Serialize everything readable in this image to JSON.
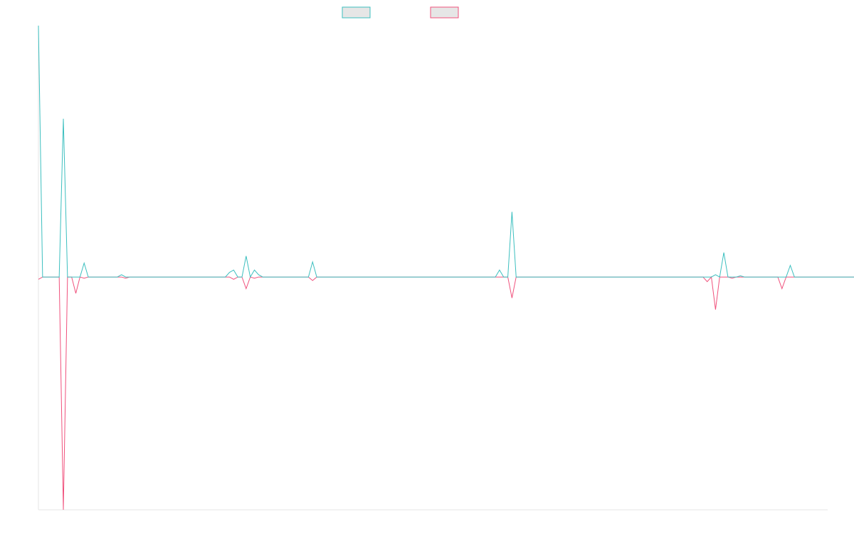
{
  "colors": {
    "background": "#ffffff",
    "axis": "#e5e5e5",
    "legend_fill": "#e6e6e6"
  },
  "chart_data": {
    "type": "line",
    "title": "",
    "xlabel": "",
    "ylabel": "",
    "grid": false,
    "legend_position": "top-center",
    "x_range": [
      0,
      190
    ],
    "ylim": [
      -1,
      1.08
    ],
    "series": [
      {
        "color": "#3cbfbf",
        "values": [
          1.08,
          0,
          0,
          0,
          0,
          0,
          0.68,
          0,
          0,
          0,
          0,
          0.06,
          0,
          0,
          0,
          0,
          0,
          0,
          0,
          0,
          0.01,
          0,
          0,
          0,
          0,
          0,
          0,
          0,
          0,
          0,
          0,
          0,
          0,
          0,
          0,
          0,
          0,
          0,
          0,
          0,
          0,
          0,
          0,
          0,
          0,
          0,
          0.02,
          0.03,
          0,
          0,
          0.09,
          0,
          0.03,
          0.01,
          0,
          0,
          0,
          0,
          0,
          0,
          0,
          0,
          0,
          0,
          0,
          0,
          0.065,
          0,
          0,
          0,
          0,
          0,
          0,
          0,
          0,
          0,
          0,
          0,
          0,
          0,
          0,
          0,
          0,
          0,
          0,
          0,
          0,
          0,
          0,
          0,
          0,
          0,
          0,
          0,
          0,
          0,
          0,
          0,
          0,
          0,
          0,
          0,
          0,
          0,
          0,
          0,
          0,
          0,
          0,
          0,
          0,
          0.03,
          0,
          0,
          0.28,
          0,
          0,
          0,
          0,
          0,
          0,
          0,
          0,
          0,
          0,
          0,
          0,
          0,
          0,
          0,
          0,
          0,
          0,
          0,
          0,
          0,
          0,
          0,
          0,
          0,
          0,
          0,
          0,
          0,
          0,
          0,
          0,
          0,
          0,
          0,
          0,
          0,
          0,
          0,
          0,
          0,
          0,
          0,
          0,
          0,
          0,
          0,
          0,
          0.01,
          0,
          0.105,
          0,
          0,
          0,
          0.005,
          0,
          0,
          0,
          0,
          0,
          0,
          0,
          0,
          0,
          0,
          0,
          0.05,
          0,
          0,
          0,
          0,
          0,
          0,
          0,
          0,
          0,
          0,
          0,
          0,
          0,
          0,
          0,
          0,
          0,
          0
        ]
      },
      {
        "color": "#f0517c",
        "values": [
          -0.01,
          0,
          0,
          0,
          0,
          0,
          -1,
          0,
          0,
          -0.07,
          0,
          -0.005,
          0,
          0,
          0,
          0,
          0,
          0,
          0,
          0,
          0,
          -0.005,
          0,
          0,
          0,
          0,
          0,
          0,
          0,
          0,
          0,
          0,
          0,
          0,
          0,
          0,
          0,
          0,
          0,
          0,
          0,
          0,
          0,
          0,
          0,
          0,
          0,
          -0.01,
          0,
          0,
          -0.05,
          0,
          -0.005,
          0,
          0,
          0,
          0,
          0,
          0,
          0,
          0,
          0,
          0,
          0,
          0,
          0,
          -0.015,
          0,
          0,
          0,
          0,
          0,
          0,
          0,
          0,
          0,
          0,
          0,
          0,
          0,
          0,
          0,
          0,
          0,
          0,
          0,
          0,
          0,
          0,
          0,
          0,
          0,
          0,
          0,
          0,
          0,
          0,
          0,
          0,
          0,
          0,
          0,
          0,
          0,
          0,
          0,
          0,
          0,
          0,
          0,
          0,
          0,
          0,
          0,
          -0.09,
          0,
          0,
          0,
          0,
          0,
          0,
          0,
          0,
          0,
          0,
          0,
          0,
          0,
          0,
          0,
          0,
          0,
          0,
          0,
          0,
          0,
          0,
          0,
          0,
          0,
          0,
          0,
          0,
          0,
          0,
          0,
          0,
          0,
          0,
          0,
          0,
          0,
          0,
          0,
          0,
          0,
          0,
          0,
          0,
          0,
          0,
          -0.02,
          0,
          -0.14,
          0,
          0,
          0,
          -0.005,
          0,
          0,
          0,
          0,
          0,
          0,
          0,
          0,
          0,
          0,
          0,
          -0.05,
          0,
          0,
          0,
          0,
          0,
          0,
          0,
          0,
          0,
          0,
          0,
          0,
          0,
          0,
          0,
          0,
          0,
          0
        ]
      }
    ]
  }
}
